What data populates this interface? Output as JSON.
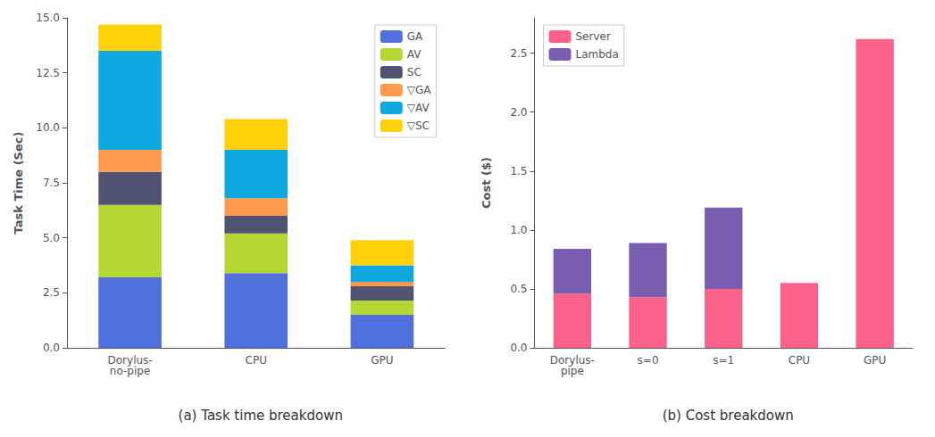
{
  "chart_data": [
    {
      "type": "bar",
      "title": "(a) Task time breakdown",
      "ylabel": "Task Time (Sec)",
      "categories": [
        "Dorylus-\nno-pipe",
        "CPU",
        "GPU"
      ],
      "series": [
        {
          "name": "GA",
          "values": [
            3.2,
            3.4,
            1.5
          ]
        },
        {
          "name": "AV",
          "values": [
            3.3,
            1.8,
            0.65
          ]
        },
        {
          "name": "SC",
          "values": [
            1.5,
            0.8,
            0.65
          ]
        },
        {
          "name": "▽GA",
          "values": [
            1.0,
            0.8,
            0.2
          ]
        },
        {
          "name": "▽AV",
          "values": [
            4.5,
            2.2,
            0.75
          ]
        },
        {
          "name": "▽SC",
          "values": [
            1.2,
            1.4,
            1.15
          ]
        }
      ],
      "ylim": [
        0,
        15.0
      ],
      "yticks": [
        {
          "value": 0,
          "label": "0.0"
        },
        2.5,
        {
          "value": 5,
          "label": "5.0"
        },
        {
          "value": 7.5,
          "label": "7.5"
        },
        {
          "value": 10,
          "label": "10.0"
        },
        12.5,
        {
          "value": 15,
          "label": "15.0"
        }
      ],
      "stacked": true,
      "legend": "upper right",
      "grid": false
    },
    {
      "type": "bar",
      "title": "(b) Cost breakdown",
      "ylabel": "Cost ($)",
      "categories": [
        "Dorylus-\npipe",
        "s=0",
        "s=1",
        "CPU",
        "GPU"
      ],
      "series": [
        {
          "name": "Server",
          "values": [
            0.46,
            0.43,
            0.5,
            0.55,
            2.62
          ]
        },
        {
          "name": "Lambda",
          "values": [
            0.38,
            0.46,
            0.69,
            0.0,
            0.0
          ]
        }
      ],
      "ylim": [
        0,
        2.8
      ],
      "yticks": [
        {
          "value": 0,
          "label": "0.0"
        },
        0.5,
        {
          "value": 1,
          "label": "1.0"
        },
        1.5,
        {
          "value": 2,
          "label": "2.0"
        },
        2.5
      ],
      "stacked": true,
      "legend": "upper left",
      "grid": false
    }
  ]
}
